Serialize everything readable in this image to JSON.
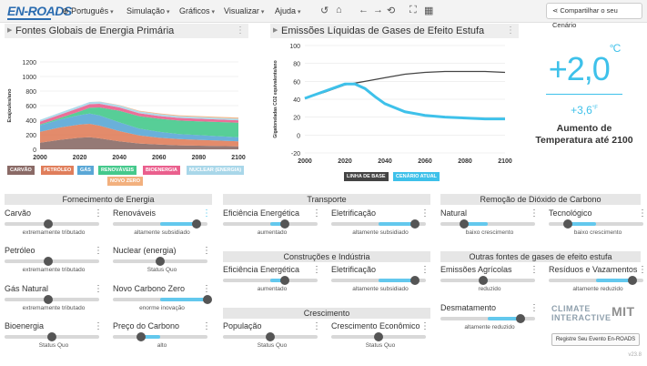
{
  "header": {
    "logo": "EN-ROADS",
    "menus": [
      {
        "label": "Português",
        "icon": "globe-icon"
      },
      {
        "label": "Simulação"
      },
      {
        "label": "Gráficos"
      },
      {
        "label": "Visualizar"
      },
      {
        "label": "Ajuda"
      }
    ],
    "tools": [
      "undo-icon",
      "home-icon",
      "back-icon",
      "forward-icon",
      "refresh-icon",
      "fullscreen-icon",
      "grid-icon"
    ],
    "share_label": "Compartilhar o seu Cenário"
  },
  "graph_left": {
    "title": "Fontes Globais de Energia Primária",
    "ylabel": "Exajoules/ano",
    "legend": [
      {
        "label": "CARVÃO",
        "color": "#8a6a66"
      },
      {
        "label": "PETRÓLEO",
        "color": "#e07e5b"
      },
      {
        "label": "GÁS",
        "color": "#5aa7d6"
      },
      {
        "label": "RENOVÁVEIS",
        "color": "#45c98c"
      },
      {
        "label": "BIOENERGIA",
        "color": "#ea5f8d"
      },
      {
        "label": "NUCLEAR (ENERGIA)",
        "color": "#a9d7e9"
      },
      {
        "label": "NOVO ZERO",
        "color": "#f2b07e"
      }
    ]
  },
  "graph_right": {
    "title": "Emissões Líquidas de Gases de Efeito Estufa",
    "ylabel": "Gigatoneladas CO2 equivalente/ano",
    "legend": [
      {
        "label": "LINHA DE BASE",
        "color": "#444444"
      },
      {
        "label": "CENÁRIO ATUAL",
        "color": "#3ec1ea"
      }
    ]
  },
  "chart_data": [
    {
      "type": "area",
      "title": "Fontes Globais de Energia Primária",
      "ylabel": "Exajoules/ano",
      "x": [
        2000,
        2010,
        2020,
        2025,
        2030,
        2040,
        2050,
        2060,
        2070,
        2080,
        2090,
        2100
      ],
      "xticks": [
        2000,
        2020,
        2040,
        2060,
        2080,
        2100
      ],
      "yticks": [
        0,
        200,
        400,
        600,
        800,
        1000,
        1200
      ],
      "ylim": [
        0,
        1200
      ],
      "series": [
        {
          "name": "CARVÃO",
          "color": "#8a6a66",
          "values": [
            90,
            130,
            160,
            165,
            150,
            110,
            80,
            65,
            55,
            50,
            45,
            40
          ]
        },
        {
          "name": "PETRÓLEO",
          "color": "#e07e5b",
          "values": [
            150,
            170,
            180,
            185,
            175,
            140,
            110,
            95,
            85,
            80,
            75,
            70
          ]
        },
        {
          "name": "GÁS",
          "color": "#5aa7d6",
          "values": [
            90,
            110,
            130,
            140,
            140,
            120,
            95,
            80,
            70,
            65,
            60,
            55
          ]
        },
        {
          "name": "RENOVÁVEIS",
          "color": "#45c98c",
          "values": [
            10,
            20,
            50,
            80,
            110,
            160,
            170,
            180,
            185,
            190,
            195,
            200
          ]
        },
        {
          "name": "BIOENERGIA",
          "color": "#ea5f8d",
          "values": [
            40,
            45,
            50,
            50,
            50,
            45,
            40,
            38,
            36,
            35,
            34,
            33
          ]
        },
        {
          "name": "NUCLEAR (ENERGIA)",
          "color": "#a9d7e9",
          "values": [
            25,
            28,
            30,
            30,
            30,
            28,
            26,
            25,
            24,
            23,
            22,
            22
          ]
        },
        {
          "name": "NOVO ZERO",
          "color": "#f2b07e",
          "values": [
            0,
            0,
            0,
            0,
            2,
            5,
            8,
            10,
            12,
            14,
            15,
            16
          ]
        }
      ]
    },
    {
      "type": "line",
      "title": "Emissões Líquidas de Gases de Efeito Estufa",
      "ylabel": "Gigatoneladas CO2 equivalente/ano",
      "xticks": [
        2000,
        2020,
        2040,
        2060,
        2080,
        2100
      ],
      "yticks": [
        -20,
        -10,
        0,
        10,
        20,
        30,
        40,
        50,
        60,
        70,
        80,
        90,
        100
      ],
      "ylim": [
        -20,
        100
      ],
      "series": [
        {
          "name": "LINHA DE BASE",
          "color": "#444444",
          "x": [
            2000,
            2010,
            2020,
            2025,
            2030,
            2040,
            2050,
            2060,
            2070,
            2080,
            2090,
            2100
          ],
          "values": [
            41,
            48,
            56,
            58,
            60,
            64,
            68,
            70,
            71,
            71,
            71,
            70
          ]
        },
        {
          "name": "CENÁRIO ATUAL",
          "color": "#3ec1ea",
          "x": [
            2000,
            2010,
            2020,
            2025,
            2030,
            2035,
            2040,
            2050,
            2060,
            2070,
            2080,
            2090,
            2100
          ],
          "values": [
            41,
            49,
            57,
            57,
            52,
            43,
            35,
            26,
            22,
            20,
            19,
            18,
            18
          ]
        }
      ]
    }
  ],
  "temperature": {
    "celsius": "+2,0",
    "celsius_unit": "°C",
    "fahrenheit": "+3,6",
    "fahrenheit_unit": "°F",
    "description": "Aumento de Temperatura até 2100",
    "color": "#3ec1ea"
  },
  "groups": {
    "supply": "Fornecimento de Energia",
    "transport": "Transporte",
    "buildings": "Construções e Indústria",
    "growth": "Crescimento",
    "removal": "Remoção de Dióxido de Carbono",
    "other": "Outras fontes de gases de efeito estufa"
  },
  "sliders": {
    "carvao": {
      "label": "Carvão",
      "sub": "extremamente tributado",
      "level": 0.46
    },
    "renovaveis": {
      "label": "Renováveis",
      "sub": "altamente subsidiado",
      "level": 0.88
    },
    "petroleo": {
      "label": "Petróleo",
      "sub": "extremamente tributado",
      "level": 0.46
    },
    "nuclear": {
      "label": "Nuclear (energia)",
      "sub": "Status Quo",
      "level": 0.5
    },
    "gas": {
      "label": "Gás Natural",
      "sub": "extremamente tributado",
      "level": 0.46
    },
    "novo_carbono": {
      "label": "Novo Carbono Zero",
      "sub": "enorme inovação",
      "level": 1.0
    },
    "bioenergia": {
      "label": "Bioenergia",
      "sub": "Status Quo",
      "level": 0.5
    },
    "preco_carbono": {
      "label": "Preço do Carbono",
      "sub": "alto",
      "level": 0.3
    },
    "transp_eficiencia": {
      "label": "Eficiência Energética",
      "sub": "aumentado",
      "level": 0.65
    },
    "transp_eletrificacao": {
      "label": "Eletrificação",
      "sub": "altamente subsidiado",
      "level": 0.88
    },
    "const_eficiencia": {
      "label": "Eficiência Energética",
      "sub": "aumentado",
      "level": 0.65
    },
    "const_eletrificacao": {
      "label": "Eletrificação",
      "sub": "altamente subsidiado",
      "level": 0.88
    },
    "populacao": {
      "label": "População",
      "sub": "Status Quo",
      "level": 0.5
    },
    "crescimento_economico": {
      "label": "Crescimento Econômico",
      "sub": "Status Quo",
      "level": 0.5
    },
    "natural": {
      "label": "Natural",
      "sub": "baixo crescimento",
      "level": 0.25
    },
    "tecnologico": {
      "label": "Tecnológico",
      "sub": "baixo crescimento",
      "level": 0.2
    },
    "agricolas": {
      "label": "Emissões Agrícolas",
      "sub": "reduzido",
      "level": 0.45
    },
    "residuos": {
      "label": "Resíduos e Vazamentos",
      "sub": "altamente reduzido",
      "level": 0.88
    },
    "desmatamento": {
      "label": "Desmatamento",
      "sub": "altamente reduzido",
      "level": 0.85
    }
  },
  "partners": {
    "climate": "CLIMATE INTERACTIVE",
    "mit": "MIT"
  },
  "register_label": "Registre Seu Evento En-ROADS",
  "version": "v23.8"
}
